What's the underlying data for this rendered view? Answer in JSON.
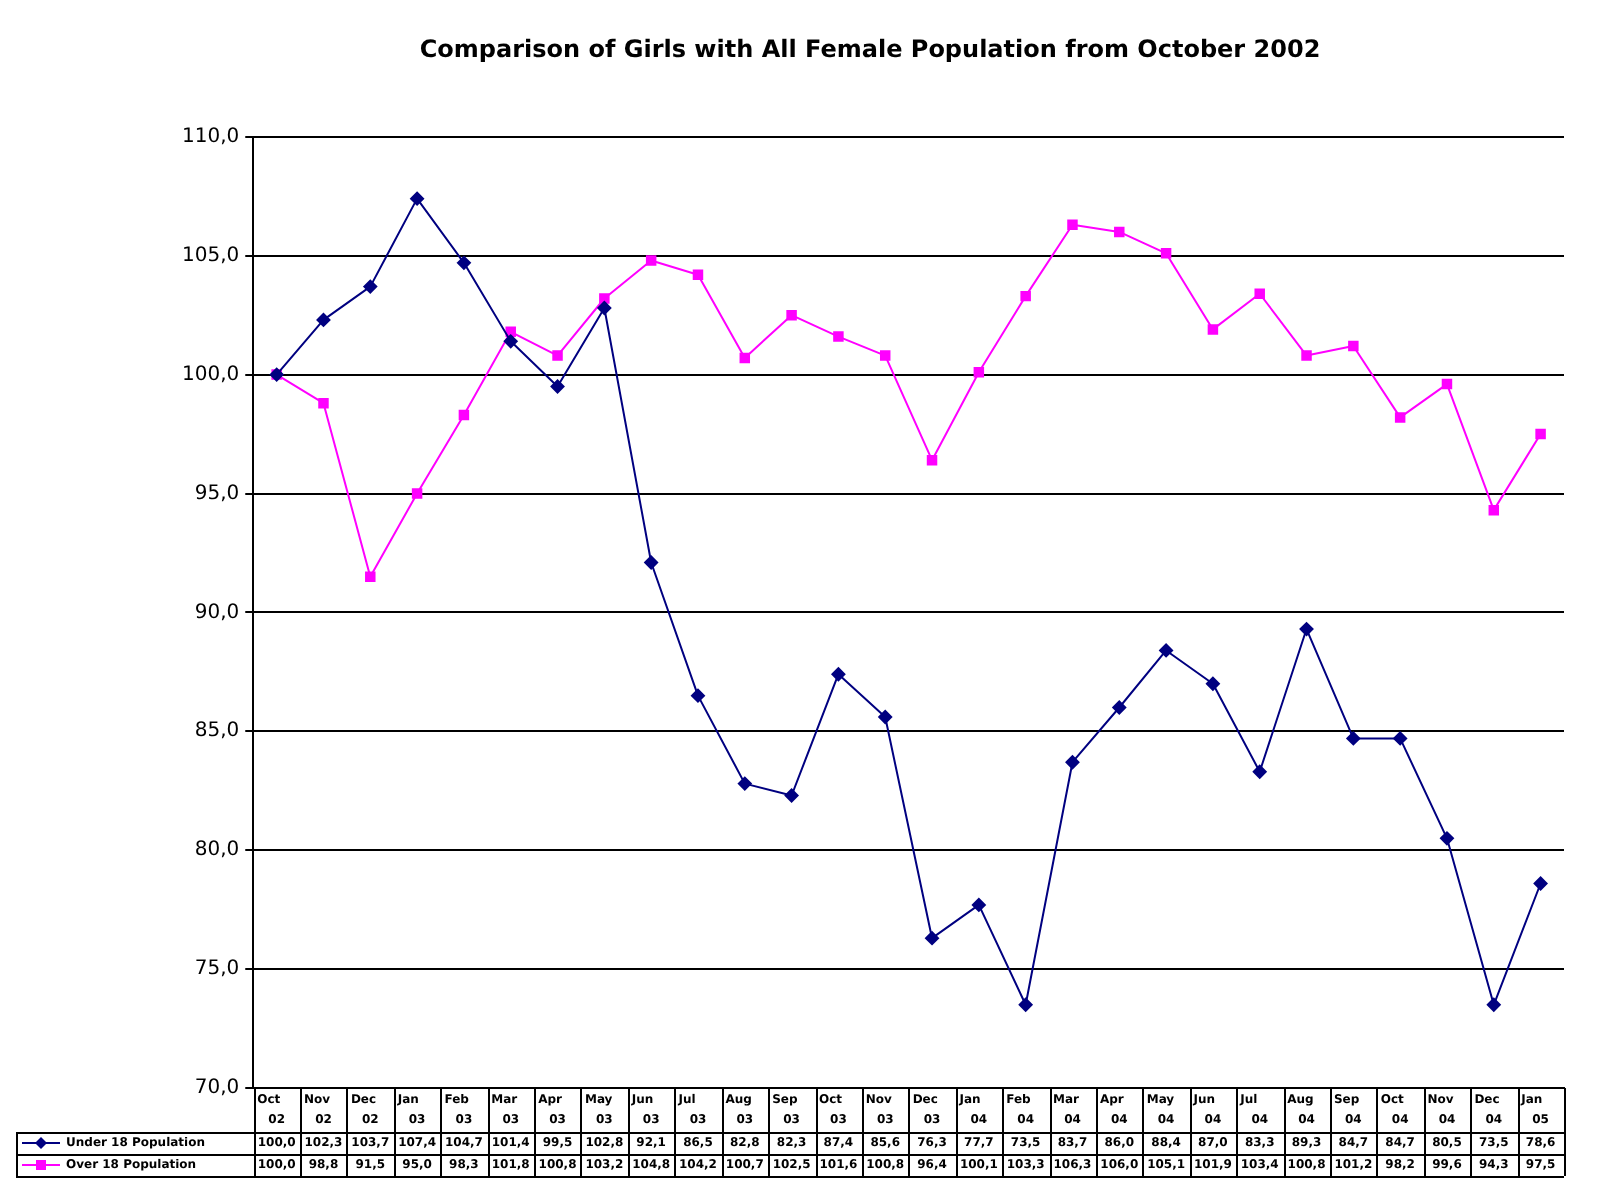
{
  "chart_data": {
    "type": "line",
    "title": "Comparison of Girls with All Female Population from October 2002",
    "legend": "bottom",
    "categories": [
      "Oct 02",
      "Nov 02",
      "Dec 02",
      "Jan 03",
      "Feb 03",
      "Mar 03",
      "Apr 03",
      "May 03",
      "Jun 03",
      "Jul 03",
      "Aug 03",
      "Sep 03",
      "Oct 03",
      "Nov 03",
      "Dec 03",
      "Jan 04",
      "Feb 04",
      "Mar 04",
      "Apr 04",
      "May 04",
      "Jun 04",
      "Jul 04",
      "Aug 04",
      "Sep 04",
      "Oct 04",
      "Nov 04",
      "Dec 04",
      "Jan 05"
    ],
    "series": [
      {
        "name": "Under 18 Population",
        "color": "#000080",
        "marker": "diamond",
        "values": [
          100.0,
          102.3,
          103.7,
          107.4,
          104.7,
          101.4,
          99.5,
          102.8,
          92.1,
          86.5,
          82.8,
          82.3,
          87.4,
          85.6,
          76.3,
          77.7,
          73.5,
          83.7,
          86.0,
          88.4,
          87.0,
          83.3,
          89.3,
          84.7,
          84.7,
          80.5,
          73.5,
          78.6
        ],
        "value_labels": [
          "100,0",
          "102,3",
          "103,7",
          "107,4",
          "104,7",
          "101,4",
          "99,5",
          "102,8",
          "92,1",
          "86,5",
          "82,8",
          "82,3",
          "87,4",
          "85,6",
          "76,3",
          "77,7",
          "73,5",
          "83,7",
          "86,0",
          "88,4",
          "87,0",
          "83,3",
          "89,3",
          "84,7",
          "84,7",
          "80,5",
          "73,5",
          "78,6"
        ]
      },
      {
        "name": "Over 18 Population",
        "color": "#ff00ff",
        "marker": "square",
        "values": [
          100.0,
          98.8,
          91.5,
          95.0,
          98.3,
          101.8,
          100.8,
          103.2,
          104.8,
          104.2,
          100.7,
          102.5,
          101.6,
          100.8,
          96.4,
          100.1,
          103.3,
          106.3,
          106.0,
          105.1,
          101.9,
          103.4,
          100.8,
          101.2,
          98.2,
          99.6,
          94.3,
          97.5
        ],
        "value_labels": [
          "100,0",
          "98,8",
          "91,5",
          "95,0",
          "98,3",
          "101,8",
          "100,8",
          "103,2",
          "104,8",
          "104,2",
          "100,7",
          "102,5",
          "101,6",
          "100,8",
          "96,4",
          "100,1",
          "103,3",
          "106,3",
          "106,0",
          "105,1",
          "101,9",
          "103,4",
          "100,8",
          "101,2",
          "98,2",
          "99,6",
          "94,3",
          "97,5"
        ]
      }
    ],
    "ylim": [
      70,
      110
    ],
    "yticks": [
      {
        "value": 70,
        "label": "70,0"
      },
      {
        "value": 75,
        "label": "75,0"
      },
      {
        "value": 80,
        "label": "80,0"
      },
      {
        "value": 85,
        "label": "85,0"
      },
      {
        "value": 90,
        "label": "90,0"
      },
      {
        "value": 95,
        "label": "95,0"
      },
      {
        "value": 100,
        "label": "100,0"
      },
      {
        "value": 105,
        "label": "105,0"
      },
      {
        "value": 110,
        "label": "110,0"
      }
    ],
    "grid": "y"
  }
}
